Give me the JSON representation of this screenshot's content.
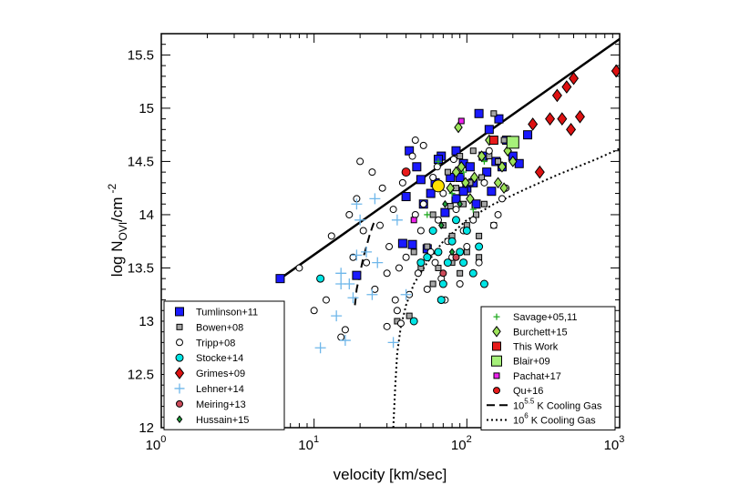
{
  "chart_data": {
    "type": "scatter",
    "title": "",
    "xlabel": "velocity [km/sec]",
    "ylabel": {
      "prefix": "log N",
      "sub": "OVI",
      "mid": "/cm",
      "sup": "-2"
    },
    "xscale": "log",
    "xlim": [
      1,
      1000
    ],
    "ylim": [
      12,
      15.7
    ],
    "x_ticks": [
      {
        "value": 1,
        "base": "10",
        "exp": "0"
      },
      {
        "value": 10,
        "base": "10",
        "exp": "1"
      },
      {
        "value": 100,
        "base": "10",
        "exp": "2"
      },
      {
        "value": 1000,
        "base": "10",
        "exp": "3"
      }
    ],
    "y_ticks": [
      "12",
      "12.5",
      "13",
      "13.5",
      "14",
      "14.5",
      "15",
      "15.5"
    ],
    "grid": false,
    "legend_placement": [
      "bottom-left",
      "bottom-right"
    ],
    "series": [
      {
        "name": "Tumlinson+11",
        "marker": "square",
        "color": "#1a1aff",
        "size": 9,
        "points": [
          [
            6,
            13.4
          ],
          [
            19,
            13.43
          ],
          [
            38,
            13.73
          ],
          [
            40,
            14.17
          ],
          [
            42,
            14.6
          ],
          [
            44,
            13.72
          ],
          [
            47,
            14.45
          ],
          [
            50,
            14.33
          ],
          [
            52,
            14.1
          ],
          [
            55,
            13.68
          ],
          [
            58,
            14.2
          ],
          [
            62,
            14.3
          ],
          [
            68,
            14.55
          ],
          [
            72,
            14.02
          ],
          [
            78,
            14.35
          ],
          [
            85,
            14.6
          ],
          [
            90,
            14.35
          ],
          [
            95,
            14.48
          ],
          [
            100,
            14.25
          ],
          [
            110,
            14.3
          ],
          [
            115,
            14.1
          ],
          [
            120,
            14.95
          ],
          [
            128,
            14.55
          ],
          [
            135,
            14.4
          ],
          [
            140,
            14.8
          ],
          [
            155,
            14.5
          ],
          [
            162,
            14.9
          ],
          [
            170,
            14.45
          ],
          [
            182,
            14.7
          ],
          [
            200,
            14.55
          ],
          [
            220,
            14.48
          ],
          [
            250,
            14.75
          ],
          [
            85,
            14.15
          ],
          [
            65,
            14.52
          ],
          [
            105,
            14.45
          ],
          [
            145,
            14.22
          ],
          [
            95,
            14.22
          ]
        ]
      },
      {
        "name": "Bowen+08",
        "marker": "square",
        "color": "#a6a6a6",
        "size": 6,
        "points": [
          [
            35,
            13.0
          ],
          [
            42,
            13.05
          ],
          [
            45,
            13.65
          ],
          [
            50,
            13.5
          ],
          [
            55,
            13.7
          ],
          [
            60,
            14.0
          ],
          [
            65,
            14.25
          ],
          [
            70,
            13.9
          ],
          [
            75,
            14.4
          ],
          [
            80,
            13.8
          ],
          [
            85,
            14.25
          ],
          [
            90,
            14.55
          ],
          [
            95,
            14.1
          ],
          [
            100,
            13.9
          ],
          [
            105,
            14.3
          ],
          [
            110,
            14.6
          ],
          [
            115,
            14.0
          ],
          [
            120,
            13.6
          ],
          [
            125,
            14.35
          ],
          [
            130,
            14.1
          ],
          [
            140,
            14.55
          ],
          [
            150,
            14.95
          ],
          [
            160,
            14.5
          ],
          [
            175,
            14.7
          ],
          [
            70,
            13.2
          ],
          [
            80,
            13.55
          ],
          [
            90,
            13.45
          ],
          [
            100,
            13.65
          ],
          [
            120,
            13.8
          ],
          [
            150,
            13.9
          ],
          [
            60,
            13.35
          ],
          [
            65,
            13.5
          ],
          [
            78,
            14.08
          ],
          [
            88,
            14.42
          ]
        ]
      },
      {
        "name": "Tripp+08",
        "marker": "circle",
        "color": "#ffffff",
        "size": 7,
        "points": [
          [
            8,
            13.5
          ],
          [
            10,
            13.1
          ],
          [
            12,
            13.2
          ],
          [
            13,
            13.8
          ],
          [
            15,
            12.85
          ],
          [
            16,
            12.92
          ],
          [
            17,
            14.0
          ],
          [
            18,
            13.6
          ],
          [
            19,
            14.15
          ],
          [
            20,
            14.5
          ],
          [
            21,
            13.85
          ],
          [
            22,
            13.55
          ],
          [
            24,
            14.4
          ],
          [
            25,
            13.3
          ],
          [
            27,
            13.9
          ],
          [
            28,
            14.25
          ],
          [
            30,
            13.45
          ],
          [
            31,
            13.7
          ],
          [
            33,
            14.05
          ],
          [
            35,
            13.1
          ],
          [
            36,
            13.5
          ],
          [
            38,
            14.3
          ],
          [
            40,
            13.6
          ],
          [
            42,
            13.25
          ],
          [
            44,
            14.55
          ],
          [
            46,
            14.0
          ],
          [
            48,
            13.45
          ],
          [
            50,
            13.85
          ],
          [
            52,
            14.1
          ],
          [
            55,
            13.3
          ],
          [
            58,
            13.65
          ],
          [
            60,
            14.35
          ],
          [
            62,
            13.55
          ],
          [
            65,
            13.95
          ],
          [
            68,
            13.4
          ],
          [
            70,
            14.2
          ],
          [
            75,
            13.75
          ],
          [
            80,
            13.6
          ],
          [
            85,
            14.05
          ],
          [
            90,
            13.35
          ],
          [
            95,
            13.85
          ],
          [
            100,
            13.7
          ],
          [
            110,
            13.95
          ],
          [
            120,
            13.55
          ],
          [
            130,
            14.3
          ],
          [
            140,
            14.6
          ],
          [
            150,
            13.9
          ],
          [
            160,
            14.0
          ],
          [
            170,
            14.15
          ],
          [
            180,
            14.25
          ],
          [
            30,
            12.95
          ],
          [
            34,
            13.2
          ],
          [
            37,
            12.98
          ],
          [
            46,
            14.7
          ],
          [
            52,
            14.65
          ],
          [
            64,
            14.45
          ],
          [
            72,
            13.2
          ],
          [
            82,
            14.52
          ]
        ]
      },
      {
        "name": "Stocke+14",
        "marker": "circle",
        "color": "#00e5e5",
        "size": 8,
        "points": [
          [
            11,
            13.4
          ],
          [
            45,
            13.0
          ],
          [
            50,
            13.55
          ],
          [
            55,
            13.6
          ],
          [
            60,
            13.85
          ],
          [
            65,
            13.65
          ],
          [
            68,
            13.2
          ],
          [
            70,
            13.35
          ],
          [
            75,
            13.55
          ],
          [
            80,
            13.75
          ],
          [
            85,
            13.95
          ],
          [
            90,
            13.65
          ],
          [
            95,
            13.55
          ],
          [
            100,
            13.85
          ],
          [
            110,
            13.45
          ],
          [
            120,
            13.7
          ],
          [
            130,
            13.35
          ]
        ]
      },
      {
        "name": "Grimes+09",
        "marker": "diamond",
        "color": "#dd1111",
        "size": 13,
        "points": [
          [
            270,
            14.85
          ],
          [
            300,
            14.4
          ],
          [
            350,
            14.9
          ],
          [
            390,
            15.12
          ],
          [
            420,
            14.9
          ],
          [
            450,
            15.2
          ],
          [
            480,
            14.8
          ],
          [
            500,
            15.28
          ],
          [
            550,
            14.92
          ],
          [
            950,
            15.35
          ]
        ]
      },
      {
        "name": "Lehner+14",
        "marker": "plus",
        "color": "#6fb7ea",
        "size": 12,
        "points": [
          [
            11,
            12.75
          ],
          [
            14,
            13.05
          ],
          [
            15,
            13.45
          ],
          [
            15,
            13.35
          ],
          [
            16,
            12.82
          ],
          [
            17,
            13.35
          ],
          [
            18,
            13.22
          ],
          [
            19,
            13.62
          ],
          [
            19,
            14.1
          ],
          [
            20,
            13.95
          ],
          [
            22,
            13.65
          ],
          [
            24,
            13.25
          ],
          [
            25,
            14.15
          ],
          [
            26,
            13.55
          ],
          [
            33,
            12.8
          ],
          [
            35,
            13.95
          ],
          [
            40,
            13.25
          ]
        ]
      },
      {
        "name": "Meiring+13",
        "marker": "circle",
        "color": "#cc4a59",
        "size": 7,
        "points": [
          [
            70,
            13.45
          ],
          [
            85,
            13.6
          ]
        ]
      },
      {
        "name": "Hussain+15",
        "marker": "diamond",
        "color": "#1e9e3a",
        "size": 7,
        "points": [
          [
            68,
            13.9
          ],
          [
            80,
            13.65
          ],
          [
            90,
            14.1
          ],
          [
            100,
            14.3
          ],
          [
            72,
            14.1
          ]
        ]
      },
      {
        "name": "Savage+05,11",
        "marker": "plus",
        "color": "#22aa22",
        "size": 7,
        "points": [
          [
            55,
            14.0
          ],
          [
            65,
            14.5
          ],
          [
            80,
            14.2
          ],
          [
            95,
            14.4
          ],
          [
            110,
            14.05
          ],
          [
            130,
            14.5
          ]
        ]
      },
      {
        "name": "Burchett+15",
        "marker": "diamond",
        "color": "#9de35a",
        "size": 11,
        "points": [
          [
            78,
            14.25
          ],
          [
            85,
            14.4
          ],
          [
            88,
            14.82
          ],
          [
            92,
            14.45
          ],
          [
            98,
            14.3
          ],
          [
            105,
            14.15
          ],
          [
            112,
            14.35
          ],
          [
            125,
            14.55
          ],
          [
            140,
            14.7
          ],
          [
            160,
            14.3
          ],
          [
            170,
            14.45
          ],
          [
            175,
            14.25
          ],
          [
            185,
            14.6
          ],
          [
            200,
            14.5
          ]
        ]
      },
      {
        "name": "This Work",
        "marker": "square",
        "color": "#e81b1b",
        "size": 9,
        "points": [
          [
            150,
            14.7
          ]
        ]
      },
      {
        "name": "Blair+09",
        "marker": "square",
        "color": "#a6f07a",
        "size": 13,
        "points": [
          [
            200,
            14.68
          ]
        ]
      },
      {
        "name": "Pachat+17",
        "marker": "square",
        "color": "#ee22ee",
        "size": 6,
        "points": [
          [
            45,
            13.95
          ],
          [
            92,
            14.88
          ]
        ]
      },
      {
        "name": "Qu+16",
        "marker": "circle",
        "color": "#e81b1b",
        "size": 9,
        "points": [
          [
            40,
            14.4
          ]
        ]
      }
    ],
    "extra_markers": [
      {
        "marker": "circle",
        "color": "#ffe100",
        "size": 13,
        "points": [
          [
            65,
            14.27
          ]
        ]
      }
    ],
    "lines": [
      {
        "style": "solid",
        "color": "#000000",
        "width": 2.5,
        "points": [
          [
            6,
            13.4
          ],
          [
            1000,
            15.65
          ]
        ]
      },
      {
        "style": "dashed",
        "color": "#000000",
        "width": 2,
        "points": [
          [
            18.5,
            13.15
          ],
          [
            19,
            13.3
          ],
          [
            20,
            13.45
          ],
          [
            21,
            13.6
          ],
          [
            22,
            13.7
          ],
          [
            23,
            13.8
          ],
          [
            24,
            13.88
          ],
          [
            25,
            13.95
          ]
        ]
      },
      {
        "style": "dotted",
        "color": "#000000",
        "width": 2,
        "points": [
          [
            33,
            12.0
          ],
          [
            34,
            12.4
          ],
          [
            35,
            12.7
          ],
          [
            37,
            12.95
          ],
          [
            40,
            13.15
          ],
          [
            45,
            13.35
          ],
          [
            55,
            13.55
          ],
          [
            70,
            13.75
          ],
          [
            100,
            13.95
          ],
          [
            150,
            14.1
          ],
          [
            250,
            14.25
          ],
          [
            400,
            14.38
          ],
          [
            700,
            14.52
          ],
          [
            1000,
            14.62
          ]
        ]
      }
    ],
    "legend_left": [
      {
        "label": "Tumlinson+11",
        "marker": "square",
        "color": "#1a1aff",
        "size": 9
      },
      {
        "label": "Bowen+08",
        "marker": "square",
        "color": "#a6a6a6",
        "size": 6
      },
      {
        "label": "Tripp+08",
        "marker": "circle",
        "color": "#ffffff",
        "size": 7
      },
      {
        "label": "Stocke+14",
        "marker": "circle",
        "color": "#00e5e5",
        "size": 8
      },
      {
        "label": "Grimes+09",
        "marker": "diamond",
        "color": "#dd1111",
        "size": 12
      },
      {
        "label": "Lehner+14",
        "marker": "plus",
        "color": "#6fb7ea",
        "size": 11
      },
      {
        "label": "Meiring+13",
        "marker": "circle",
        "color": "#cc4a59",
        "size": 7
      },
      {
        "label": "Hussain+15",
        "marker": "diamond",
        "color": "#1e9e3a",
        "size": 7
      }
    ],
    "legend_right": [
      {
        "label": "Savage+05,11",
        "marker": "plus",
        "color": "#22aa22",
        "size": 7
      },
      {
        "label": "Burchett+15",
        "marker": "diamond",
        "color": "#9de35a",
        "size": 11
      },
      {
        "label": "This Work",
        "marker": "square",
        "color": "#e81b1b",
        "size": 9
      },
      {
        "label": "Blair+09",
        "marker": "square",
        "color": "#a6f07a",
        "size": 11
      },
      {
        "label": "Pachat+17",
        "marker": "square",
        "color": "#ee22ee",
        "size": 6
      },
      {
        "label": "Qu+16",
        "marker": "circle",
        "color": "#e81b1b",
        "size": 7
      },
      {
        "label_pre": "10",
        "label_sup": "5.5",
        "label_post": " K Cooling Gas",
        "marker": "dashed-line",
        "color": "#000000"
      },
      {
        "label_pre": "10",
        "label_sup": "6",
        "label_post": " K Cooling Gas",
        "marker": "dotted-line",
        "color": "#000000"
      }
    ]
  }
}
